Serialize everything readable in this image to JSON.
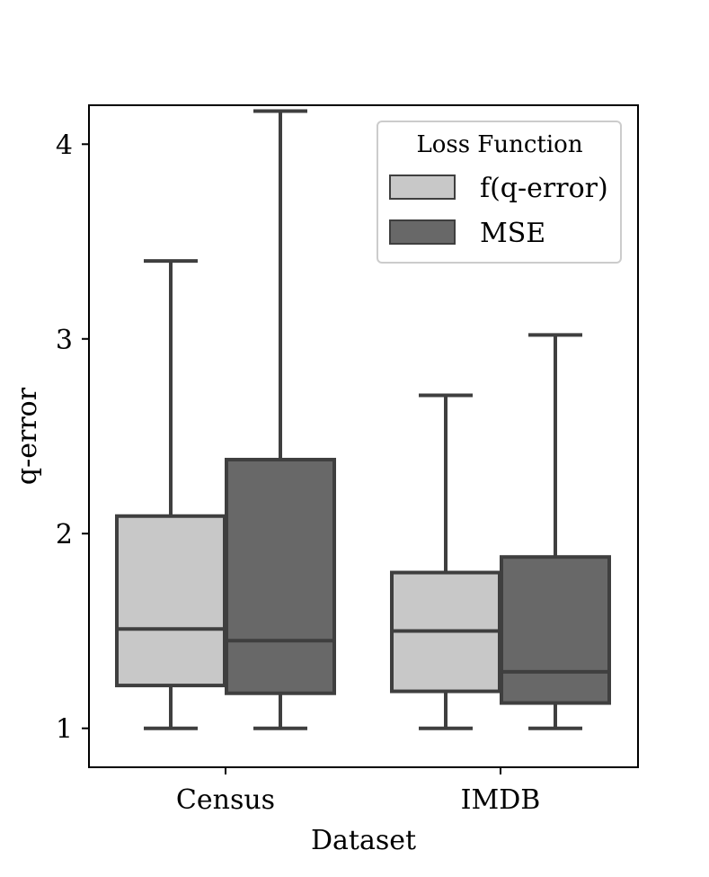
{
  "chart_data": {
    "type": "boxplot",
    "title": "",
    "xlabel": "Dataset",
    "ylabel": "q-error",
    "ylim": [
      0.8,
      4.2
    ],
    "yticks": [
      1,
      2,
      3,
      4
    ],
    "ytick_labels": [
      "1",
      "2",
      "3",
      "4"
    ],
    "categories": [
      "Census",
      "IMDB"
    ],
    "legend": {
      "title": "Loss Function",
      "position": "top-right"
    },
    "series": [
      {
        "name": "f(q-error)",
        "color": "#c8c8c8",
        "boxes": [
          {
            "whisker_low": 1.0,
            "q1": 1.22,
            "median": 1.51,
            "q3": 2.09,
            "whisker_high": 3.4
          },
          {
            "whisker_low": 1.0,
            "q1": 1.19,
            "median": 1.5,
            "q3": 1.8,
            "whisker_high": 2.71
          }
        ]
      },
      {
        "name": "MSE",
        "color": "#686868",
        "boxes": [
          {
            "whisker_low": 1.0,
            "q1": 1.18,
            "median": 1.45,
            "q3": 2.38,
            "whisker_high": 4.17
          },
          {
            "whisker_low": 1.0,
            "q1": 1.13,
            "median": 1.29,
            "q3": 1.88,
            "whisker_high": 3.02
          }
        ]
      }
    ],
    "edge_color": "#3f3f3f"
  }
}
